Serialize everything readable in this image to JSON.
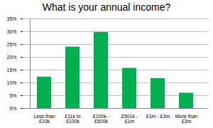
{
  "chart_data": {
    "type": "bar",
    "title": "What is your annual income?",
    "categories": [
      "Less than £10k",
      "£11k to £100k",
      "£100k - £500k",
      "£501k - £1m",
      "£1m - £3m",
      "More than £3m"
    ],
    "values": [
      12.3,
      24,
      29.7,
      15.7,
      11.7,
      6
    ],
    "color": "#00b050",
    "ylim": [
      0,
      35
    ],
    "yticks": [
      {
        "value": 0,
        "label": "0%"
      },
      {
        "value": 5,
        "label": "5%"
      },
      {
        "value": 10,
        "label": "10%"
      },
      {
        "value": 15,
        "label": "15%"
      },
      {
        "value": 20,
        "label": "20%"
      },
      {
        "value": 25,
        "label": "25%"
      },
      {
        "value": 30,
        "label": "30%"
      },
      {
        "value": 35,
        "label": "35%"
      }
    ],
    "grid": true
  }
}
